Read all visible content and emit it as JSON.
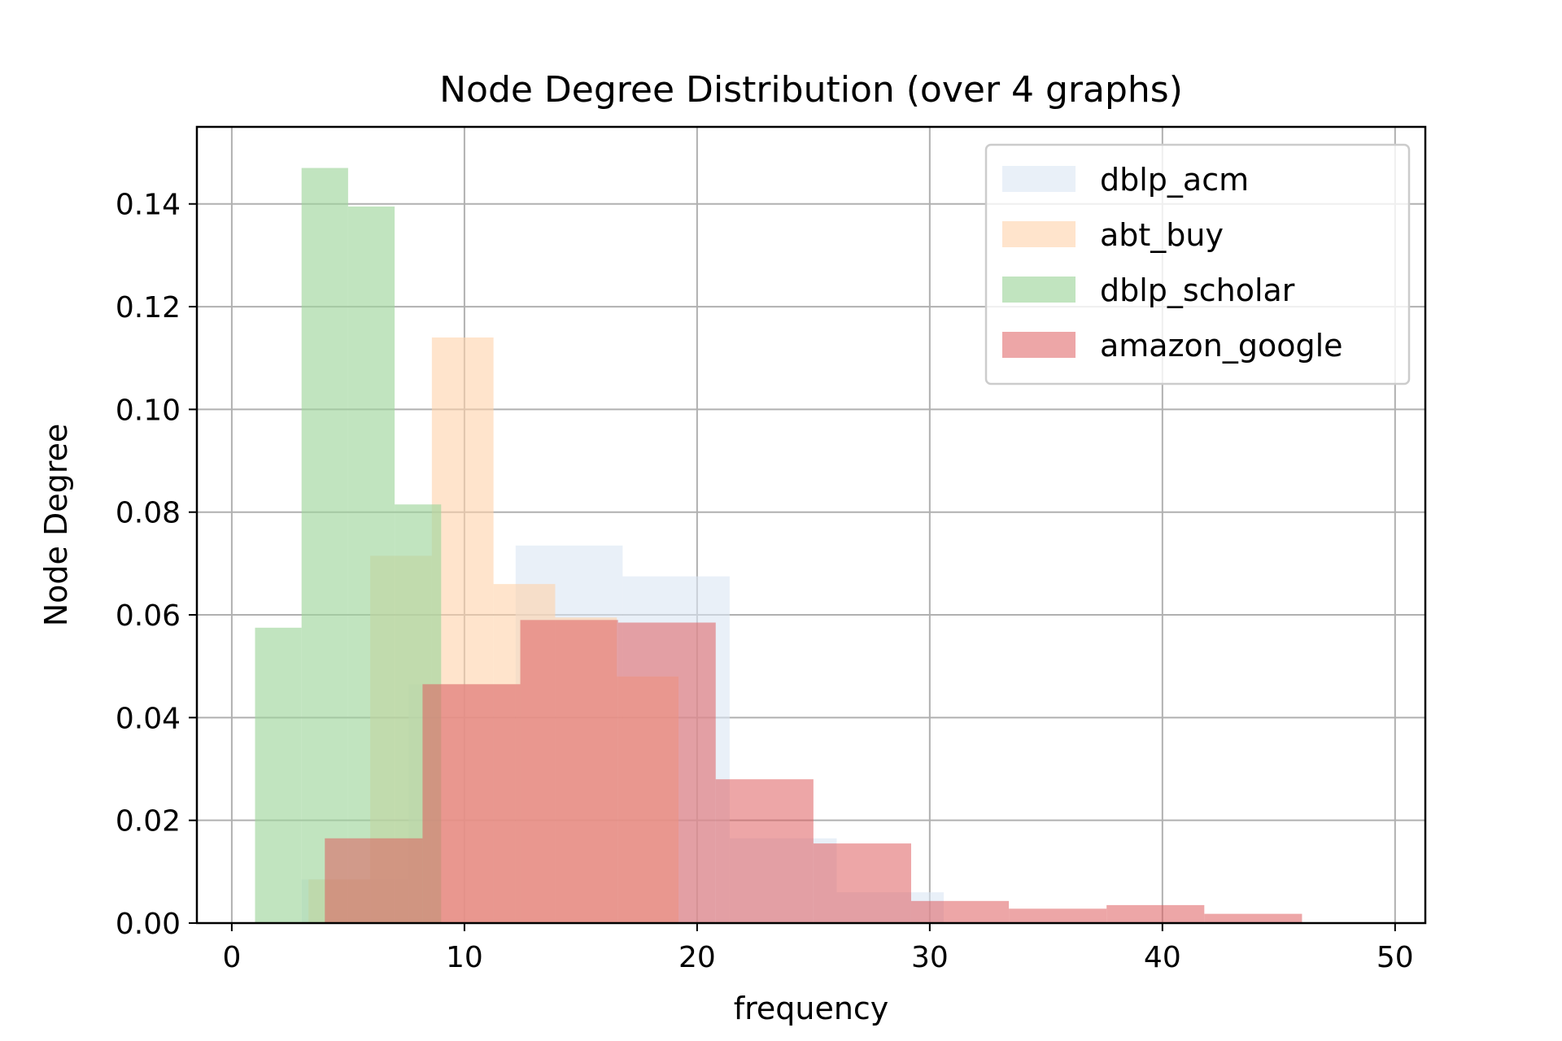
{
  "chart_data": {
    "type": "bar",
    "title": "Node Degree Distribution (over 4 graphs)",
    "xlabel": "frequency",
    "ylabel": "Node Degree",
    "xlim": [
      -1.5,
      51.3
    ],
    "ylim": [
      0,
      0.155
    ],
    "xticks": [
      0,
      10,
      20,
      30,
      40,
      50
    ],
    "yticks": [
      0.0,
      0.02,
      0.04,
      0.06,
      0.08,
      0.1,
      0.12,
      0.14
    ],
    "xtick_labels": [
      "0",
      "10",
      "20",
      "30",
      "40",
      "50"
    ],
    "ytick_labels": [
      "0.00",
      "0.02",
      "0.04",
      "0.06",
      "0.08",
      "0.10",
      "0.12",
      "0.14"
    ],
    "grid": true,
    "legend_position": "top-right",
    "series": [
      {
        "name": "dblp_acm",
        "color": "#dbe6f4",
        "opacity": 0.6,
        "bins": [
          3,
          7.6,
          12.2,
          16.8,
          21.4,
          26,
          30.6
        ],
        "values": [
          0.0085,
          0.0465,
          0.0735,
          0.0675,
          0.0165,
          0.006
        ]
      },
      {
        "name": "abt_buy",
        "color": "#ffd2aa",
        "opacity": 0.6,
        "bins": [
          3.3,
          5.95,
          8.6,
          11.25,
          13.9,
          16.55,
          19.2
        ],
        "values": [
          0.0085,
          0.0715,
          0.114,
          0.066,
          0.0595,
          0.048
        ]
      },
      {
        "name": "dblp_scholar",
        "color": "#9fd59c",
        "opacity": 0.65,
        "bins": [
          1,
          3,
          5,
          7,
          9
        ],
        "values": [
          0.0575,
          0.147,
          0.1395,
          0.0815
        ]
      },
      {
        "name": "amazon_google",
        "color": "#de5c5e",
        "opacity": 0.55,
        "bins": [
          4,
          8.2,
          12.4,
          16.6,
          20.8,
          25,
          29.2,
          33.4,
          37.6,
          41.8,
          46
        ],
        "values": [
          0.0165,
          0.0465,
          0.059,
          0.0585,
          0.028,
          0.0155,
          0.0043,
          0.0028,
          0.0035,
          0.0018
        ]
      }
    ]
  }
}
